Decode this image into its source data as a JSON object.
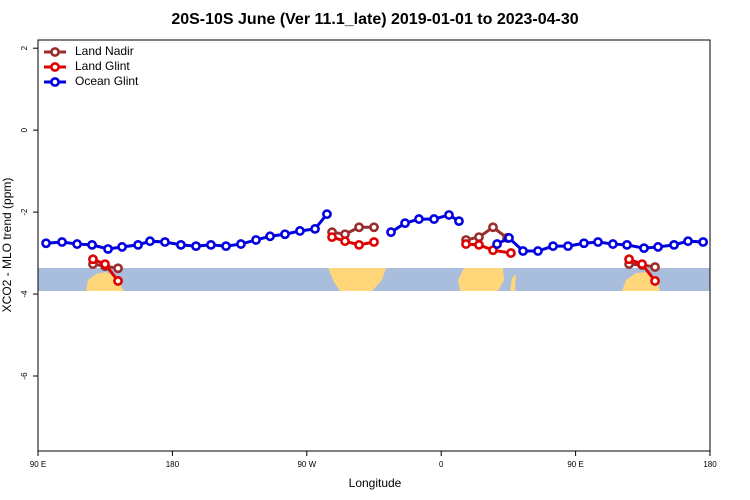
{
  "chart_data": {
    "type": "line",
    "title": "20S-10S June (Ver 11.1_late)   2019-01-01 to 2023-04-30",
    "x_label": "Longitude",
    "y_label": "XCO2 - MLO trend (ppm)",
    "xlim": [
      90,
      540
    ],
    "xticks": [
      {
        "value": 90,
        "label": "90 E"
      },
      180,
      {
        "value": 270,
        "label": "90 W"
      },
      {
        "value": 360,
        "label": "0"
      },
      {
        "value": 450,
        "label": "90 E"
      },
      {
        "value": 540,
        "label": "180"
      }
    ],
    "ylim": [
      -7.83,
      2.2
    ],
    "yticks": [
      2,
      0,
      -2,
      -4,
      -6
    ],
    "legend": "top-left",
    "series": [
      {
        "name": "Land Nadir",
        "color": "#9b2d2d",
        "x": [
          126.8,
          134.9,
          143.6,
          null,
          286.9,
          295.6,
          305.0,
          315.0,
          null,
          376.6,
          385.3,
          394.7,
          404.1,
          null,
          485.8,
          494.5,
          503.2
        ],
        "values": [
          -3.27,
          -3.32,
          -3.37,
          null,
          -2.49,
          -2.54,
          -2.37,
          -2.37,
          null,
          -2.68,
          -2.61,
          -2.37,
          -2.63,
          null,
          -3.27,
          -3.29,
          -3.34
        ]
      },
      {
        "name": "Land Glint",
        "color": "#e00000",
        "x": [
          126.8,
          134.9,
          143.6,
          null,
          286.9,
          295.6,
          305.0,
          315.0,
          null,
          376.6,
          385.3,
          394.7,
          406.7,
          null,
          485.8,
          494.5,
          503.2
        ],
        "values": [
          -3.15,
          -3.27,
          -3.68,
          null,
          -2.61,
          -2.71,
          -2.8,
          -2.73,
          null,
          -2.78,
          -2.8,
          -2.93,
          -3.0,
          null,
          -3.15,
          -3.27,
          -3.68
        ]
      },
      {
        "name": "Ocean Glint",
        "color": "#0000e0",
        "x": [
          95.4,
          106.1,
          116.2,
          126.2,
          136.9,
          146.3,
          157.0,
          165.0,
          175.0,
          185.7,
          195.8,
          205.8,
          215.9,
          225.9,
          236.0,
          245.4,
          255.4,
          265.4,
          275.5,
          283.5,
          null,
          326.4,
          335.8,
          345.1,
          355.2,
          365.2,
          371.9,
          null,
          397.4,
          405.4,
          414.8,
          424.8,
          434.9,
          444.9,
          455.6,
          465.0,
          475.0,
          484.4,
          495.8,
          505.2,
          515.9,
          525.3,
          535.4
        ],
        "values": [
          -2.76,
          -2.73,
          -2.78,
          -2.8,
          -2.9,
          -2.85,
          -2.8,
          -2.71,
          -2.73,
          -2.8,
          -2.83,
          -2.8,
          -2.83,
          -2.78,
          -2.68,
          -2.59,
          -2.54,
          -2.46,
          -2.41,
          -2.05,
          null,
          -2.49,
          -2.27,
          -2.17,
          -2.17,
          -2.07,
          -2.22,
          null,
          -2.78,
          -2.63,
          -2.95,
          -2.95,
          -2.83,
          -2.83,
          -2.76,
          -2.73,
          -2.78,
          -2.8,
          -2.88,
          -2.85,
          -2.8,
          -2.71,
          -2.73
        ]
      }
    ]
  }
}
